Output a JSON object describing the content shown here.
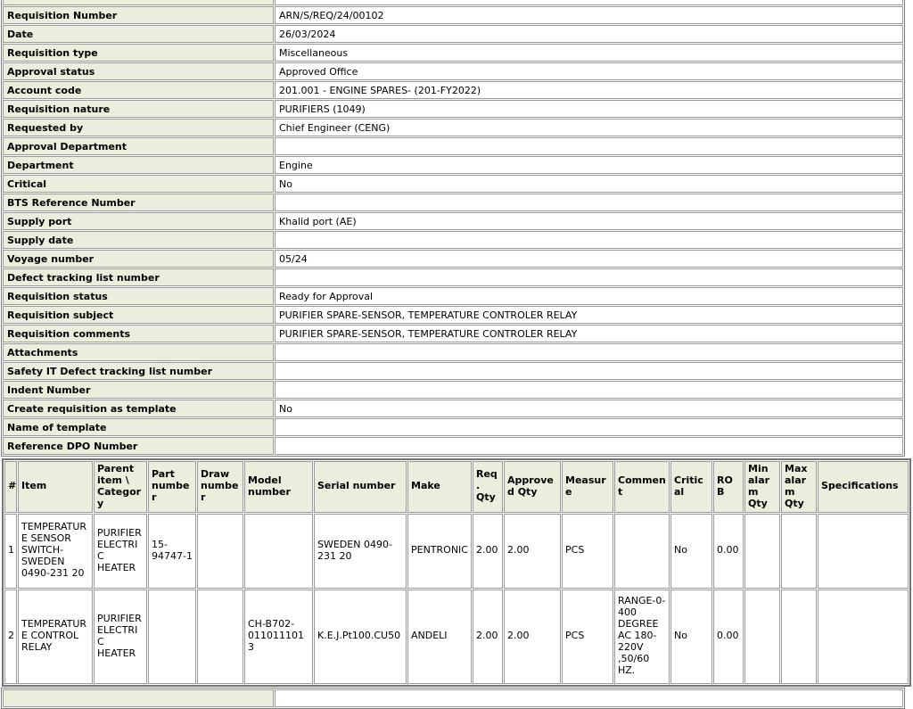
{
  "details": {
    "rows": [
      {
        "label": "Requisition Number",
        "value": "ARN/S/REQ/24/00102"
      },
      {
        "label": "Date",
        "value": "26/03/2024"
      },
      {
        "label": "Requisition type",
        "value": "Miscellaneous"
      },
      {
        "label": "Approval status",
        "value": "Approved Office"
      },
      {
        "label": "Account code",
        "value": "201.001 - ENGINE SPARES- (201-FY2022)"
      },
      {
        "label": "Requisition nature",
        "value": "PURIFIERS (1049)"
      },
      {
        "label": "Requested by",
        "value": "Chief Engineer (CENG)"
      },
      {
        "label": "Approval Department",
        "value": ""
      },
      {
        "label": "Department",
        "value": "Engine"
      },
      {
        "label": "Critical",
        "value": "No"
      },
      {
        "label": "BTS Reference Number",
        "value": ""
      },
      {
        "label": "Supply port",
        "value": "Khalid port (AE)"
      },
      {
        "label": "Supply date",
        "value": ""
      },
      {
        "label": "Voyage number",
        "value": "05/24"
      },
      {
        "label": "Defect tracking list number",
        "value": ""
      },
      {
        "label": "Requisition status",
        "value": "Ready for Approval"
      },
      {
        "label": "Requisition subject",
        "value": "PURIFIER SPARE-SENSOR, TEMPERATURE CONTROLER RELAY"
      },
      {
        "label": "Requisition comments",
        "value": "PURIFIER SPARE-SENSOR, TEMPERATURE CONTROLER RELAY"
      },
      {
        "label": "Attachments",
        "value": ""
      },
      {
        "label": "Safety IT Defect tracking list number",
        "value": ""
      },
      {
        "label": "Indent Number",
        "value": ""
      },
      {
        "label": "Create requisition as template",
        "value": "No"
      },
      {
        "label": "Name of template",
        "value": ""
      },
      {
        "label": "Reference DPO Number",
        "value": ""
      }
    ]
  },
  "items": {
    "columns": [
      "#",
      "Item",
      "Parent item \\ Category",
      "Part number",
      "Draw number",
      "Model number",
      "Serial number",
      "Make",
      "Req. Qty",
      "Approved Qty",
      "Measure",
      "Comment",
      "Critical",
      "ROB",
      "Min alarm Qty",
      "Max alarm Qty",
      "Specifications"
    ],
    "rows": [
      [
        "1",
        "TEMPERATURE SENSOR SWITCH- SWEDEN 0490-231 20",
        "PURIFIER ELECTRIC HEATER",
        "15-94747-1",
        "",
        "",
        "SWEDEN 0490-231 20",
        "PENTRONIC",
        "2.00",
        "2.00",
        "PCS",
        "",
        "No",
        "0.00",
        "",
        "",
        ""
      ],
      [
        "2",
        "TEMPERATURE CONTROL RELAY",
        "PURIFIER ELECTRIC HEATER",
        "",
        "",
        "CH-B702-0110111013",
        "K.E.J.Pt100.CU50",
        "ANDELI",
        "2.00",
        "2.00",
        "PCS",
        "RANGE-0-400 DEGREE AC 180-220V ,50/60 HZ.",
        "No",
        "0.00",
        "",
        "",
        ""
      ]
    ]
  },
  "colors": {
    "label_background": "#e9efdc",
    "grid_border": "#9a9a9a",
    "outer_border": "#757575",
    "text": "#000000"
  }
}
